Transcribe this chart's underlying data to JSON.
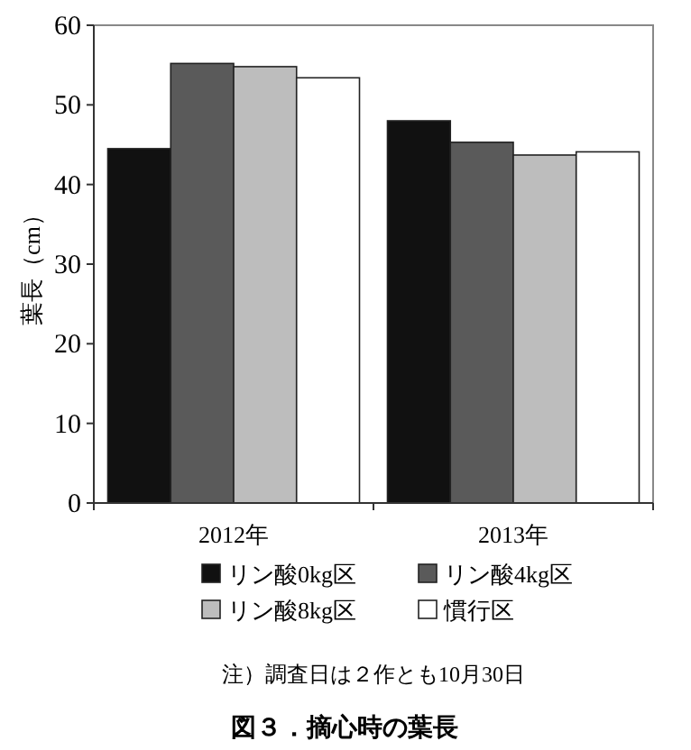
{
  "chart_data": {
    "type": "bar",
    "title": "図３．摘心時の葉長",
    "ylabel": "葉長（cm）",
    "categories": [
      "2012年",
      "2013年"
    ],
    "series": [
      {
        "name": "リン酸0kg区",
        "color": "#111111",
        "values": [
          44.5,
          48.0
        ]
      },
      {
        "name": "リン酸4kg区",
        "color": "#5a5a5a",
        "values": [
          55.2,
          45.3
        ]
      },
      {
        "name": "リン酸8kg区",
        "color": "#bdbdbd",
        "values": [
          54.8,
          43.7
        ]
      },
      {
        "name": "慣行区",
        "color": "#ffffff",
        "values": [
          53.4,
          44.1
        ]
      }
    ],
    "ylim": [
      0,
      60
    ],
    "yticks": [
      0,
      10,
      20,
      30,
      40,
      50,
      60
    ],
    "legend": "bottom",
    "annotations": [
      "注）調査日は２作とも10月30日"
    ]
  }
}
